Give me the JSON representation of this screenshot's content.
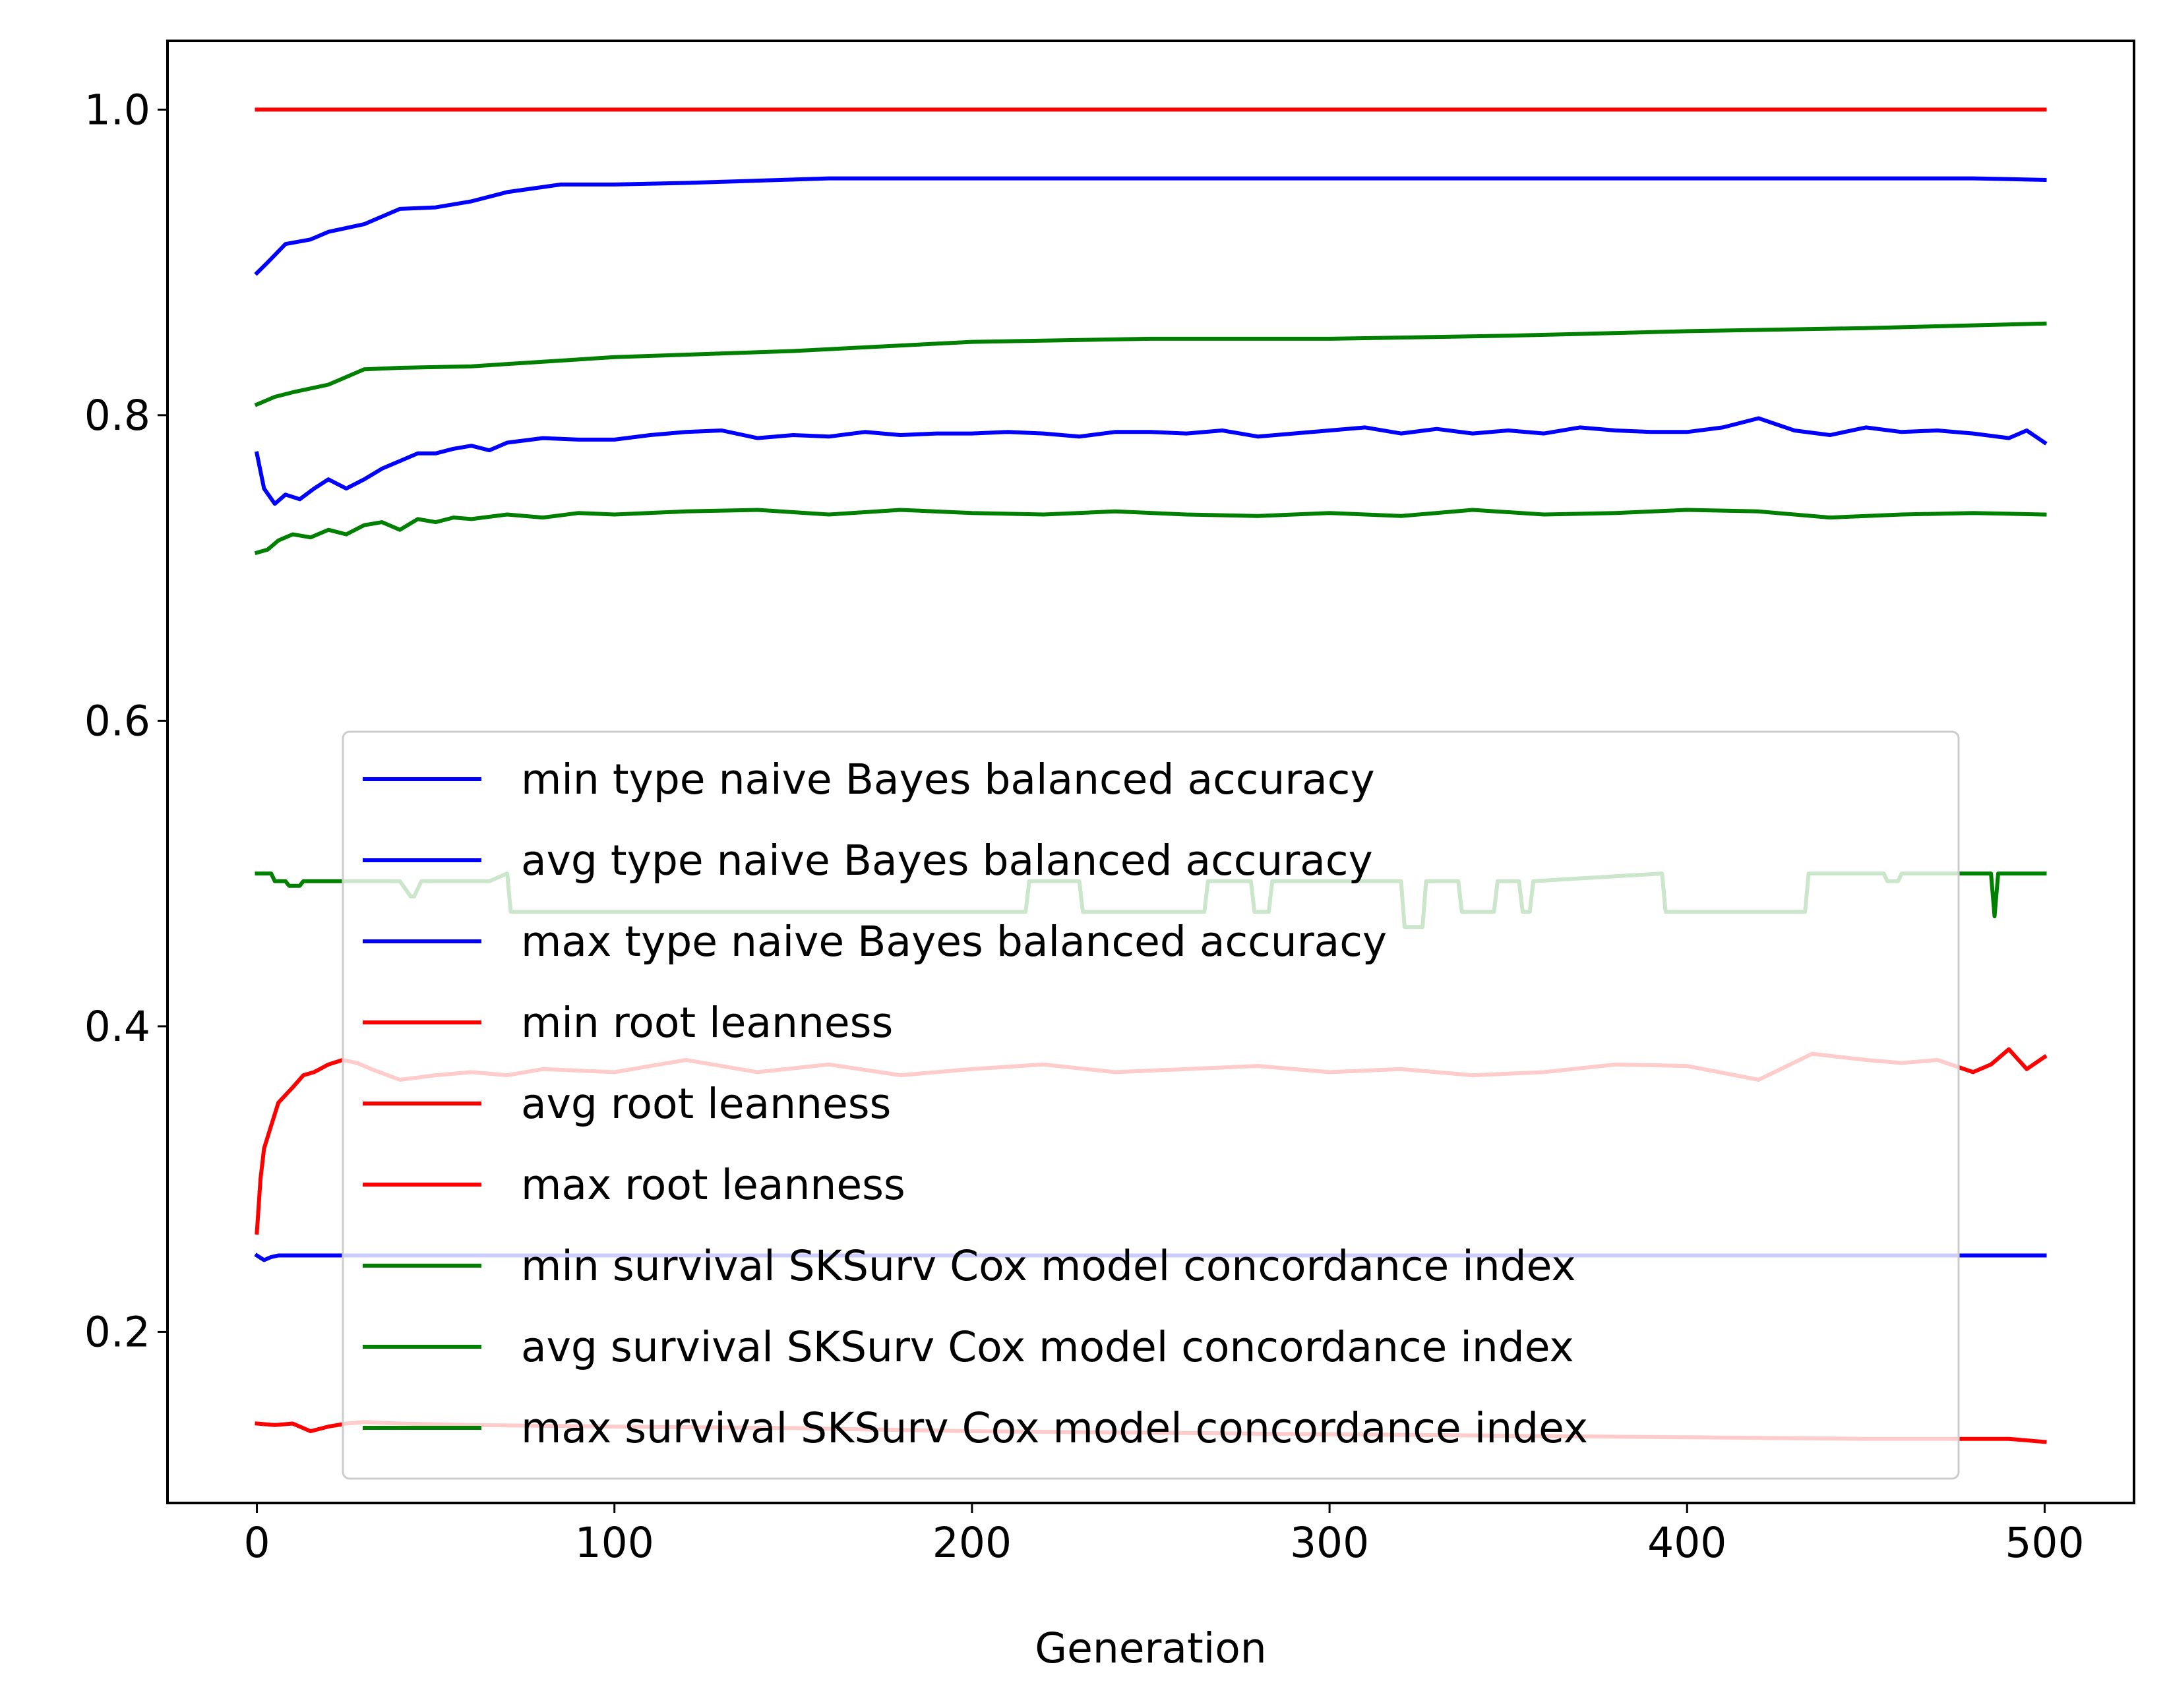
{
  "chart_data": {
    "type": "line",
    "title": "",
    "xlabel": "Generation",
    "ylabel": "",
    "xlim": [
      -25,
      525
    ],
    "ylim": [
      0.088,
      1.045
    ],
    "xticks": [
      0,
      100,
      200,
      300,
      400,
      500
    ],
    "xtick_labels": [
      "0",
      "100",
      "200",
      "300",
      "400",
      "500"
    ],
    "yticks": [
      0.2,
      0.4,
      0.6,
      0.8,
      1.0
    ],
    "ytick_labels": [
      "0.2",
      "0.4",
      "0.6",
      "0.8",
      "1.0"
    ],
    "grid": false,
    "legend_position": "lower center",
    "series": [
      {
        "name": "min type naive Bayes balanced accuracy",
        "color": "#0000ff",
        "x": [
          0,
          2,
          4,
          6,
          8,
          10,
          20,
          30,
          40,
          50,
          60,
          70,
          80,
          100,
          150,
          200,
          250,
          300,
          350,
          400,
          450,
          500
        ],
        "y": [
          0.25,
          0.247,
          0.249,
          0.25,
          0.25,
          0.25,
          0.25,
          0.25,
          0.25,
          0.25,
          0.25,
          0.25,
          0.25,
          0.25,
          0.25,
          0.25,
          0.25,
          0.25,
          0.25,
          0.25,
          0.25,
          0.25
        ]
      },
      {
        "name": "avg type naive Bayes balanced accuracy",
        "color": "#0000ff",
        "x": [
          0,
          2,
          5,
          8,
          12,
          16,
          20,
          25,
          30,
          35,
          40,
          45,
          50,
          55,
          60,
          65,
          70,
          80,
          90,
          100,
          110,
          120,
          130,
          140,
          150,
          160,
          170,
          180,
          190,
          200,
          210,
          220,
          230,
          240,
          250,
          260,
          270,
          280,
          290,
          300,
          310,
          320,
          330,
          340,
          350,
          360,
          370,
          380,
          390,
          400,
          410,
          420,
          430,
          440,
          450,
          460,
          470,
          480,
          490,
          495,
          500
        ],
        "y": [
          0.775,
          0.752,
          0.742,
          0.748,
          0.745,
          0.752,
          0.758,
          0.752,
          0.758,
          0.765,
          0.77,
          0.775,
          0.775,
          0.778,
          0.78,
          0.777,
          0.782,
          0.785,
          0.784,
          0.784,
          0.787,
          0.789,
          0.79,
          0.785,
          0.787,
          0.786,
          0.789,
          0.787,
          0.788,
          0.788,
          0.789,
          0.788,
          0.786,
          0.789,
          0.789,
          0.788,
          0.79,
          0.786,
          0.788,
          0.79,
          0.792,
          0.788,
          0.791,
          0.788,
          0.79,
          0.788,
          0.792,
          0.79,
          0.789,
          0.789,
          0.792,
          0.798,
          0.79,
          0.787,
          0.792,
          0.789,
          0.79,
          0.788,
          0.785,
          0.79,
          0.782
        ]
      },
      {
        "name": "max type naive Bayes balanced accuracy",
        "color": "#0000ff",
        "x": [
          0,
          3,
          8,
          15,
          20,
          30,
          40,
          50,
          60,
          70,
          85,
          100,
          120,
          160,
          200,
          300,
          400,
          480,
          500
        ],
        "y": [
          0.893,
          0.9,
          0.912,
          0.915,
          0.92,
          0.925,
          0.935,
          0.936,
          0.94,
          0.946,
          0.951,
          0.951,
          0.952,
          0.955,
          0.955,
          0.955,
          0.955,
          0.955,
          0.954
        ]
      },
      {
        "name": "min root leanness",
        "color": "#ff0000",
        "x": [
          0,
          5,
          10,
          15,
          20,
          25,
          30,
          40,
          60,
          100,
          150,
          200,
          250,
          300,
          350,
          400,
          450,
          490,
          500
        ],
        "y": [
          0.14,
          0.139,
          0.14,
          0.135,
          0.138,
          0.14,
          0.141,
          0.14,
          0.139,
          0.138,
          0.137,
          0.135,
          0.134,
          0.133,
          0.132,
          0.131,
          0.13,
          0.13,
          0.128
        ]
      },
      {
        "name": "avg root leanness",
        "color": "#ff0000",
        "x": [
          0,
          1,
          2,
          4,
          6,
          8,
          10,
          13,
          16,
          20,
          24,
          28,
          32,
          40,
          50,
          60,
          70,
          80,
          100,
          120,
          140,
          160,
          180,
          200,
          220,
          240,
          260,
          280,
          300,
          320,
          340,
          360,
          380,
          400,
          420,
          435,
          450,
          460,
          470,
          480,
          485,
          490,
          495,
          500
        ],
        "y": [
          0.265,
          0.3,
          0.32,
          0.335,
          0.35,
          0.355,
          0.36,
          0.368,
          0.37,
          0.375,
          0.378,
          0.376,
          0.372,
          0.365,
          0.368,
          0.37,
          0.368,
          0.372,
          0.37,
          0.378,
          0.37,
          0.375,
          0.368,
          0.372,
          0.375,
          0.37,
          0.372,
          0.374,
          0.37,
          0.372,
          0.368,
          0.37,
          0.375,
          0.374,
          0.365,
          0.382,
          0.378,
          0.376,
          0.378,
          0.37,
          0.375,
          0.385,
          0.372,
          0.38
        ]
      },
      {
        "name": "max root leanness",
        "color": "#ff0000",
        "x": [
          0,
          500
        ],
        "y": [
          1.0,
          1.0
        ]
      },
      {
        "name": "min survival SKSurv Cox model concordance index",
        "color": "#008000",
        "x": [
          0,
          4,
          5,
          8,
          9,
          12,
          13,
          40,
          43,
          44,
          46,
          65,
          70,
          71,
          72,
          215,
          216,
          230,
          231,
          265,
          266,
          278,
          279,
          283,
          284,
          320,
          321,
          326,
          327,
          336,
          337,
          346,
          347,
          353,
          354,
          356,
          357,
          393,
          394,
          433,
          434,
          455,
          456,
          459,
          460,
          484,
          485,
          486,
          487,
          500
        ],
        "y": [
          0.5,
          0.5,
          0.495,
          0.495,
          0.492,
          0.492,
          0.495,
          0.495,
          0.485,
          0.485,
          0.495,
          0.495,
          0.5,
          0.475,
          0.475,
          0.475,
          0.495,
          0.495,
          0.475,
          0.475,
          0.495,
          0.495,
          0.475,
          0.475,
          0.495,
          0.495,
          0.465,
          0.465,
          0.495,
          0.495,
          0.475,
          0.475,
          0.495,
          0.495,
          0.475,
          0.475,
          0.495,
          0.5,
          0.475,
          0.475,
          0.5,
          0.5,
          0.495,
          0.495,
          0.5,
          0.5,
          0.5,
          0.472,
          0.5,
          0.5
        ]
      },
      {
        "name": "avg survival SKSurv Cox model concordance index",
        "color": "#008000",
        "x": [
          0,
          3,
          6,
          10,
          15,
          20,
          25,
          30,
          35,
          40,
          45,
          50,
          55,
          60,
          70,
          80,
          90,
          100,
          120,
          140,
          160,
          180,
          200,
          220,
          240,
          260,
          280,
          300,
          320,
          340,
          360,
          380,
          400,
          420,
          440,
          460,
          480,
          500
        ],
        "y": [
          0.71,
          0.712,
          0.718,
          0.722,
          0.72,
          0.725,
          0.722,
          0.728,
          0.73,
          0.725,
          0.732,
          0.73,
          0.733,
          0.732,
          0.735,
          0.733,
          0.736,
          0.735,
          0.737,
          0.738,
          0.735,
          0.738,
          0.736,
          0.735,
          0.737,
          0.735,
          0.734,
          0.736,
          0.734,
          0.738,
          0.735,
          0.736,
          0.738,
          0.737,
          0.733,
          0.735,
          0.736,
          0.735
        ]
      },
      {
        "name": "max survival SKSurv Cox model concordance index",
        "color": "#008000",
        "x": [
          0,
          5,
          10,
          20,
          25,
          30,
          40,
          60,
          80,
          100,
          150,
          200,
          250,
          300,
          350,
          400,
          450,
          500
        ],
        "y": [
          0.807,
          0.812,
          0.815,
          0.82,
          0.825,
          0.83,
          0.831,
          0.832,
          0.835,
          0.838,
          0.842,
          0.848,
          0.85,
          0.85,
          0.852,
          0.855,
          0.857,
          0.86
        ]
      }
    ]
  }
}
